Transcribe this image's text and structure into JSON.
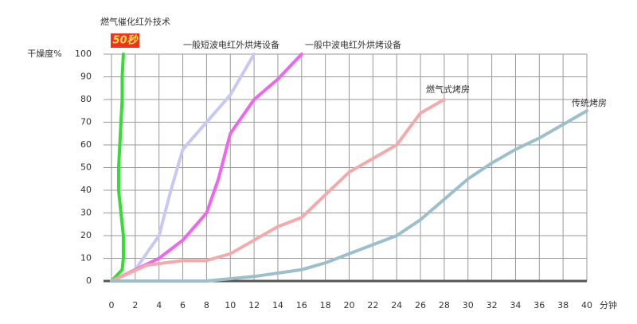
{
  "chart_data": {
    "type": "line",
    "y_label": "干燥度%",
    "x_label": "分钟",
    "annotation": "50秒",
    "xlim": [
      0,
      40
    ],
    "ylim": [
      0,
      100
    ],
    "xticks": [
      0,
      2,
      4,
      6,
      8,
      10,
      12,
      14,
      16,
      18,
      20,
      22,
      24,
      26,
      28,
      30,
      32,
      34,
      36,
      38,
      40
    ],
    "yticks": [
      0,
      10,
      20,
      30,
      40,
      50,
      60,
      70,
      80,
      90,
      100
    ],
    "grid": true,
    "series": [
      {
        "name": "燃气催化红外技术",
        "color": "#33dd33",
        "x": [
          0,
          0.9,
          1,
          1,
          0.8,
          0.6,
          0.6,
          0.7,
          0.8,
          0.9,
          0.9,
          1
        ],
        "values": [
          0,
          5,
          10,
          20,
          30,
          40,
          50,
          60,
          70,
          80,
          90,
          100
        ]
      },
      {
        "name": "一般短波电红外烘烤设备",
        "color": "#c8c8f4",
        "x": [
          0,
          2,
          4,
          5,
          6,
          8,
          10,
          12
        ],
        "values": [
          0,
          5,
          20,
          40,
          58,
          70,
          82,
          100
        ]
      },
      {
        "name": "一般中波电红外烘烤设备",
        "color": "#ee66ee",
        "x": [
          0,
          4,
          6,
          8,
          9,
          10,
          12,
          14,
          16
        ],
        "values": [
          0,
          10,
          18,
          30,
          45,
          65,
          80,
          89,
          100
        ]
      },
      {
        "name": "燃气式烤房",
        "color": "#f4aaaa",
        "x": [
          0,
          3,
          6,
          8,
          10,
          12,
          14,
          16,
          18,
          20,
          22,
          24,
          26,
          28
        ],
        "values": [
          0,
          7,
          9,
          9,
          12,
          18,
          24,
          28,
          38,
          48,
          54,
          60,
          74,
          80
        ]
      },
      {
        "name": "传统烤房",
        "color": "#9bc0cc",
        "x": [
          0,
          8,
          12,
          16,
          18,
          20,
          24,
          26,
          28,
          30,
          32,
          34,
          36,
          38,
          40
        ],
        "values": [
          0,
          0,
          2,
          5,
          8,
          12,
          20,
          27,
          36,
          45,
          52,
          58,
          63,
          69,
          75
        ]
      }
    ]
  }
}
